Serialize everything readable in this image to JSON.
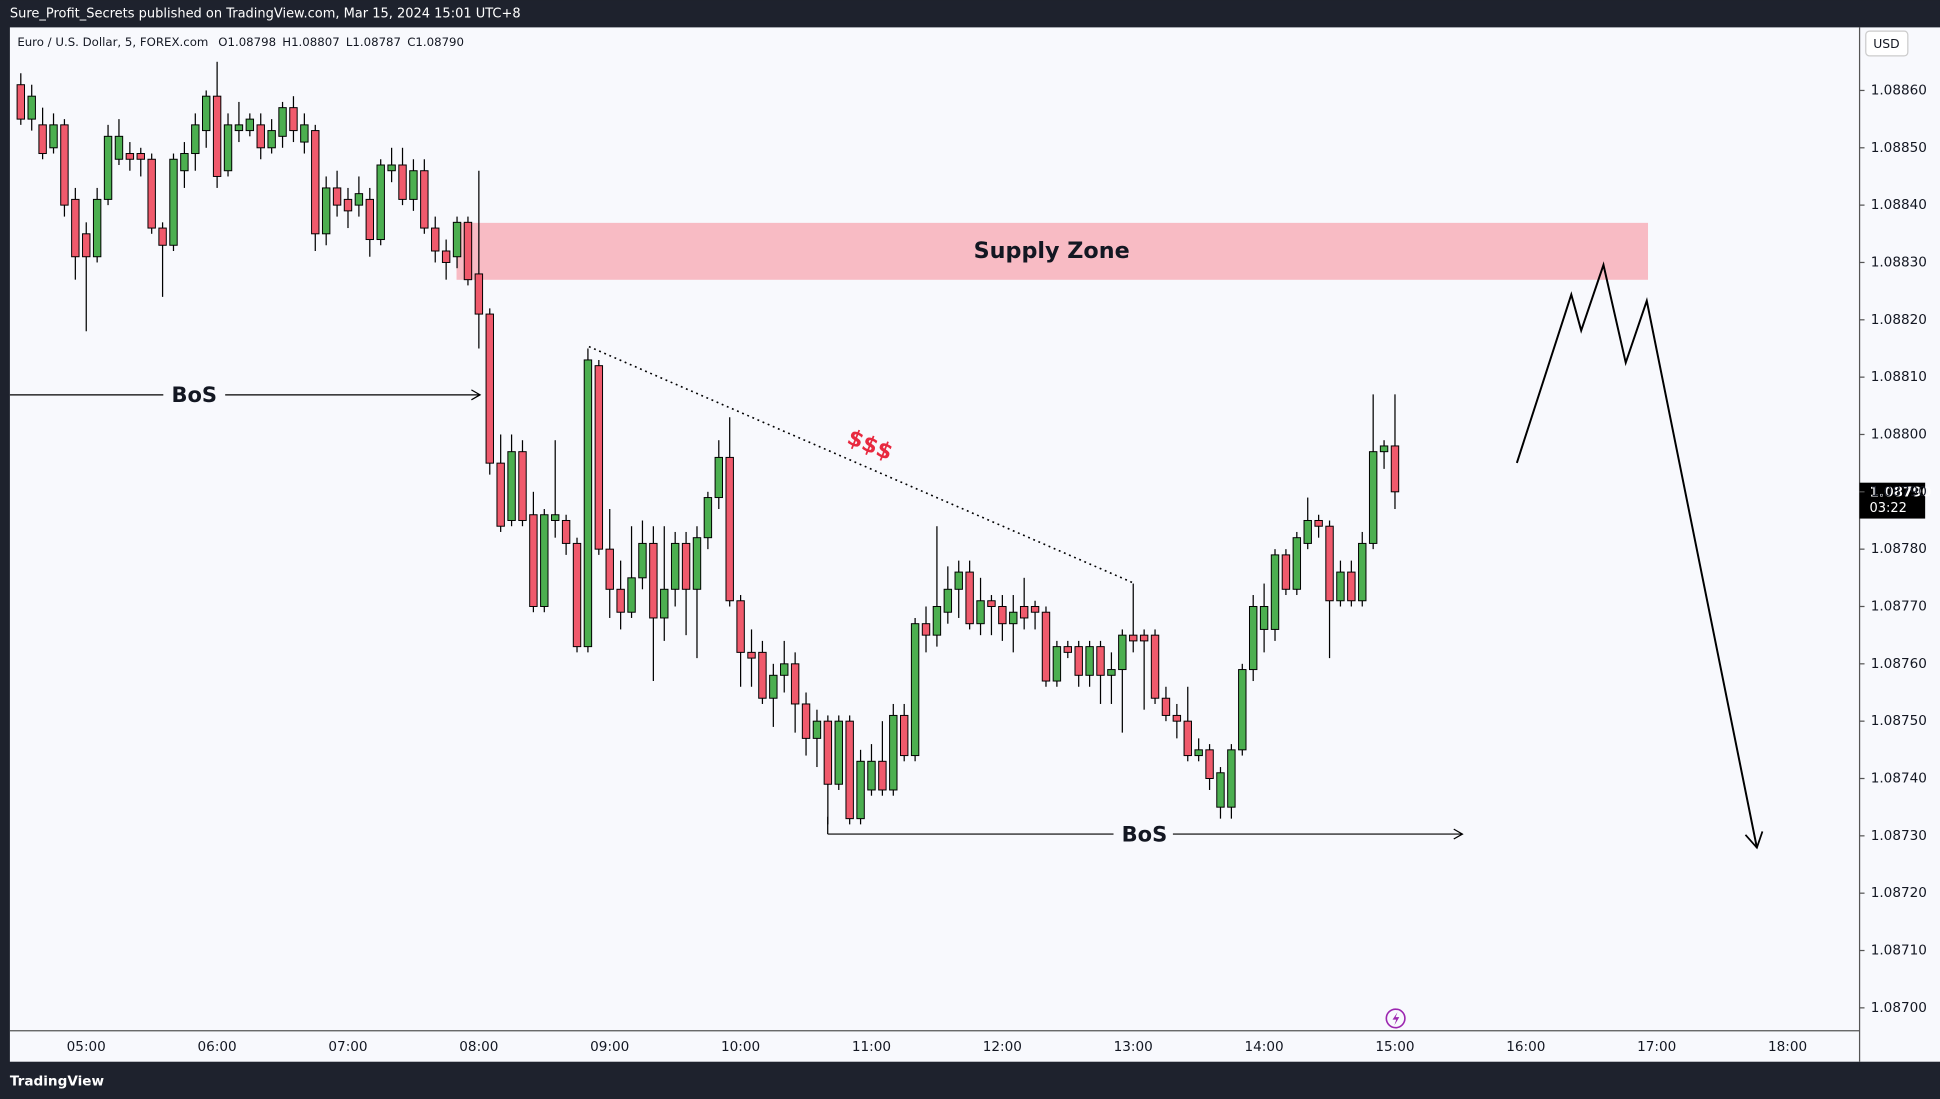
{
  "header": {
    "publisher": "Sure_Profit_Secrets published on TradingView.com, Mar 15, 2024 15:01 UTC+8",
    "symbol": "Euro / U.S. Dollar, 5, FOREX.com",
    "ohlc": [
      "O1.08798",
      "H1.08807",
      "L1.08787",
      "C1.08790"
    ],
    "currency": "USD",
    "last_price": "1.08790",
    "countdown": "03:22",
    "logo": "TradingView"
  },
  "chart_data": {
    "type": "candlestick",
    "x": [
      "04:30",
      "04:35",
      "04:40",
      "04:45",
      "04:50",
      "04:55",
      "05:00",
      "05:05",
      "05:10",
      "05:15",
      "05:20",
      "05:25",
      "05:30",
      "05:35",
      "05:40",
      "05:45",
      "05:50",
      "05:55",
      "06:00",
      "06:05",
      "06:10",
      "06:15",
      "06:20",
      "06:25",
      "06:30",
      "06:35",
      "06:40",
      "06:45",
      "06:50",
      "06:55",
      "07:00",
      "07:05",
      "07:10",
      "07:15",
      "07:20",
      "07:25",
      "07:30",
      "07:35",
      "07:40",
      "07:45",
      "07:50",
      "07:55",
      "08:00",
      "08:05",
      "08:10",
      "08:15",
      "08:20",
      "08:25",
      "08:30",
      "08:35",
      "08:40",
      "08:45",
      "08:50",
      "08:55",
      "09:00",
      "09:05",
      "09:10",
      "09:15",
      "09:20",
      "09:25",
      "09:30",
      "09:35",
      "09:40",
      "09:45",
      "09:50",
      "09:55",
      "10:00",
      "10:05",
      "10:10",
      "10:15",
      "10:20",
      "10:25",
      "10:30",
      "10:35",
      "10:40",
      "10:45",
      "10:50",
      "10:55",
      "11:00",
      "11:05",
      "11:10",
      "11:15",
      "11:20",
      "11:25",
      "11:30",
      "11:35",
      "11:40",
      "11:45",
      "11:50",
      "11:55",
      "12:00",
      "12:05",
      "12:10",
      "12:15",
      "12:20",
      "12:25",
      "12:30",
      "12:35",
      "12:40",
      "12:45",
      "12:50",
      "12:55",
      "13:00",
      "13:05",
      "13:10",
      "13:15",
      "13:20",
      "13:25",
      "13:30",
      "13:35",
      "13:40",
      "13:45",
      "13:50",
      "13:55",
      "14:00",
      "14:05",
      "14:10",
      "14:15",
      "14:20",
      "14:25",
      "14:30",
      "14:35",
      "14:40",
      "14:45",
      "14:50",
      "14:55",
      "15:00"
    ],
    "open": [
      1.08861,
      1.08855,
      1.08854,
      1.0885,
      1.08854,
      1.08841,
      1.08835,
      1.08831,
      1.08841,
      1.08848,
      1.08849,
      1.08849,
      1.08848,
      1.08836,
      1.08833,
      1.08846,
      1.08849,
      1.08853,
      1.08859,
      1.08846,
      1.08853,
      1.08853,
      1.08854,
      1.0885,
      1.08852,
      1.08857,
      1.08851,
      1.08853,
      1.08835,
      1.08843,
      1.08841,
      1.0884,
      1.08841,
      1.08834,
      1.08846,
      1.08847,
      1.08841,
      1.08846,
      1.08836,
      1.08832,
      1.08831,
      1.08837,
      1.08828,
      1.08821,
      1.08795,
      1.08785,
      1.08797,
      1.08786,
      1.0877,
      1.08785,
      1.08785,
      1.08781,
      1.08763,
      1.08812,
      1.0878,
      1.08773,
      1.08769,
      1.08775,
      1.08781,
      1.08768,
      1.08773,
      1.08781,
      1.08773,
      1.08782,
      1.08789,
      1.08796,
      1.08771,
      1.08762,
      1.08762,
      1.08754,
      1.08758,
      1.0876,
      1.08753,
      1.08747,
      1.0875,
      1.08739,
      1.0875,
      1.08733,
      1.08738,
      1.08743,
      1.08738,
      1.08751,
      1.08744,
      1.08767,
      1.08765,
      1.08769,
      1.08773,
      1.08776,
      1.08767,
      1.08771,
      1.0877,
      1.08767,
      1.0877,
      1.0877,
      1.08769,
      1.08757,
      1.08763,
      1.08763,
      1.08758,
      1.08763,
      1.08758,
      1.08759,
      1.08765,
      1.08765,
      1.08765,
      1.08754,
      1.08751,
      1.0875,
      1.08744,
      1.08745,
      1.08735,
      1.08735,
      1.08745,
      1.08759,
      1.08766,
      1.08766,
      1.08779,
      1.08773,
      1.08781,
      1.08785,
      1.08784,
      1.08771,
      1.08776,
      1.08771,
      1.08781,
      1.08797,
      1.08798
    ],
    "high": [
      1.08863,
      1.08861,
      1.08857,
      1.08856,
      1.08855,
      1.08843,
      1.08837,
      1.08843,
      1.08854,
      1.08855,
      1.08851,
      1.0885,
      1.08849,
      1.08837,
      1.08849,
      1.08851,
      1.08856,
      1.0886,
      1.08865,
      1.08856,
      1.08858,
      1.08856,
      1.08856,
      1.08855,
      1.08858,
      1.08859,
      1.08856,
      1.08854,
      1.08845,
      1.08846,
      1.08843,
      1.08845,
      1.08843,
      1.08848,
      1.0885,
      1.0885,
      1.08848,
      1.08848,
      1.08838,
      1.08834,
      1.08838,
      1.08838,
      1.08846,
      1.08822,
      1.088,
      1.088,
      1.08799,
      1.0879,
      1.08787,
      1.08799,
      1.08786,
      1.08782,
      1.08815,
      1.08813,
      1.08787,
      1.08778,
      1.08784,
      1.08785,
      1.08784,
      1.08784,
      1.08783,
      1.08783,
      1.08784,
      1.0879,
      1.08799,
      1.08803,
      1.08772,
      1.08766,
      1.08764,
      1.0876,
      1.08764,
      1.08762,
      1.08755,
      1.08752,
      1.08751,
      1.08751,
      1.08751,
      1.08745,
      1.08746,
      1.0875,
      1.08753,
      1.08753,
      1.08768,
      1.0877,
      1.08784,
      1.08777,
      1.08778,
      1.08778,
      1.08775,
      1.08772,
      1.08772,
      1.08772,
      1.08775,
      1.08771,
      1.0877,
      1.08764,
      1.08764,
      1.08764,
      1.08764,
      1.08764,
      1.08762,
      1.08766,
      1.08774,
      1.08766,
      1.08766,
      1.08756,
      1.08753,
      1.08756,
      1.08747,
      1.08746,
      1.08742,
      1.08746,
      1.0876,
      1.08772,
      1.08774,
      1.0878,
      1.0878,
      1.08783,
      1.08789,
      1.08786,
      1.08785,
      1.08778,
      1.08778,
      1.08783,
      1.08807,
      1.08799,
      1.08807
    ],
    "low": [
      1.08854,
      1.08853,
      1.08848,
      1.08849,
      1.08838,
      1.08827,
      1.08818,
      1.0883,
      1.0884,
      1.08847,
      1.08846,
      1.08845,
      1.08835,
      1.08824,
      1.08832,
      1.08843,
      1.08846,
      1.0885,
      1.08843,
      1.08845,
      1.08851,
      1.08852,
      1.08848,
      1.08849,
      1.0885,
      1.08851,
      1.08849,
      1.08832,
      1.08833,
      1.08838,
      1.08836,
      1.08838,
      1.08831,
      1.08833,
      1.08844,
      1.0884,
      1.08839,
      1.08835,
      1.0883,
      1.08827,
      1.08829,
      1.08826,
      1.08815,
      1.08793,
      1.08783,
      1.08784,
      1.08784,
      1.08769,
      1.08769,
      1.08782,
      1.08779,
      1.08762,
      1.08762,
      1.08779,
      1.08768,
      1.08766,
      1.08768,
      1.08773,
      1.08757,
      1.08764,
      1.0877,
      1.08765,
      1.08761,
      1.0878,
      1.08787,
      1.0877,
      1.08756,
      1.08756,
      1.08753,
      1.08749,
      1.08755,
      1.08748,
      1.08744,
      1.08742,
      1.08732,
      1.08738,
      1.08732,
      1.08732,
      1.08737,
      1.08737,
      1.08737,
      1.08743,
      1.08743,
      1.08762,
      1.08763,
      1.08767,
      1.08768,
      1.08766,
      1.08765,
      1.08765,
      1.08764,
      1.08762,
      1.08766,
      1.08766,
      1.08756,
      1.08756,
      1.08761,
      1.08756,
      1.08756,
      1.08753,
      1.08753,
      1.08748,
      1.08762,
      1.08752,
      1.08753,
      1.0875,
      1.08747,
      1.08743,
      1.08743,
      1.08738,
      1.08733,
      1.08733,
      1.08744,
      1.08757,
      1.08762,
      1.08764,
      1.08772,
      1.08772,
      1.0878,
      1.08782,
      1.08761,
      1.0877,
      1.0877,
      1.0877,
      1.0878,
      1.08794,
      1.08787
    ],
    "close": [
      1.08855,
      1.08859,
      1.08849,
      1.08854,
      1.0884,
      1.08831,
      1.08831,
      1.08841,
      1.08852,
      1.08852,
      1.08848,
      1.08848,
      1.08836,
      1.08833,
      1.08848,
      1.08849,
      1.08854,
      1.08859,
      1.08845,
      1.08854,
      1.08854,
      1.08855,
      1.0885,
      1.08853,
      1.08857,
      1.08853,
      1.08854,
      1.08835,
      1.08843,
      1.0884,
      1.08839,
      1.08842,
      1.08834,
      1.08847,
      1.08847,
      1.08841,
      1.08846,
      1.08836,
      1.08832,
      1.0883,
      1.08837,
      1.08827,
      1.08821,
      1.08795,
      1.08784,
      1.08797,
      1.08785,
      1.0877,
      1.08786,
      1.08786,
      1.08781,
      1.08763,
      1.08813,
      1.0878,
      1.08773,
      1.08769,
      1.08775,
      1.08781,
      1.08768,
      1.08773,
      1.08781,
      1.08773,
      1.08782,
      1.08789,
      1.08796,
      1.08771,
      1.08762,
      1.08761,
      1.08754,
      1.08758,
      1.0876,
      1.08753,
      1.08747,
      1.0875,
      1.08739,
      1.0875,
      1.08733,
      1.08743,
      1.08743,
      1.08738,
      1.08751,
      1.08744,
      1.08767,
      1.08765,
      1.0877,
      1.08773,
      1.08776,
      1.08767,
      1.08771,
      1.0877,
      1.08767,
      1.08769,
      1.08768,
      1.08769,
      1.08757,
      1.08763,
      1.08762,
      1.08758,
      1.08763,
      1.08758,
      1.08759,
      1.08765,
      1.08764,
      1.08764,
      1.08754,
      1.08751,
      1.0875,
      1.08744,
      1.08745,
      1.0874,
      1.08741,
      1.08745,
      1.08759,
      1.0877,
      1.0877,
      1.08779,
      1.08773,
      1.08782,
      1.08785,
      1.08784,
      1.08771,
      1.08776,
      1.08771,
      1.08781,
      1.08797,
      1.08798,
      1.0879
    ],
    "up_color": "#4caf50",
    "down_color": "#f05a6c",
    "xlim": [
      "04:25",
      "18:33"
    ],
    "xticks": [
      "05:00",
      "06:00",
      "07:00",
      "08:00",
      "09:00",
      "10:00",
      "11:00",
      "12:00",
      "13:00",
      "14:00",
      "15:00",
      "16:00",
      "17:00",
      "18:00"
    ],
    "ylim": [
      1.08696,
      1.08871
    ],
    "yticks": [
      {
        "value": 1.087,
        "label": "1.08700"
      },
      {
        "value": 1.0871,
        "label": "1.08710"
      },
      {
        "value": 1.0872,
        "label": "1.08720"
      },
      {
        "value": 1.0873,
        "label": "1.08730"
      },
      {
        "value": 1.0874,
        "label": "1.08740"
      },
      {
        "value": 1.0875,
        "label": "1.08750"
      },
      {
        "value": 1.0876,
        "label": "1.08760"
      },
      {
        "value": 1.0877,
        "label": "1.08770"
      },
      {
        "value": 1.0878,
        "label": "1.08780"
      },
      {
        "value": 1.0879,
        "label": "1.08790"
      },
      {
        "value": 1.088,
        "label": "1.08800"
      },
      {
        "value": 1.0881,
        "label": "1.08810"
      },
      {
        "value": 1.0882,
        "label": "1.08820"
      },
      {
        "value": 1.0883,
        "label": "1.08830"
      },
      {
        "value": 1.0884,
        "label": "1.08840"
      },
      {
        "value": 1.0885,
        "label": "1.08850"
      },
      {
        "value": 1.0886,
        "label": "1.08860"
      }
    ],
    "grid": false,
    "annotations": {
      "supply_zone": "Supply Zone",
      "bos_upper": "BoS",
      "bos_lower": "BoS",
      "liquidity": "$$$"
    }
  }
}
